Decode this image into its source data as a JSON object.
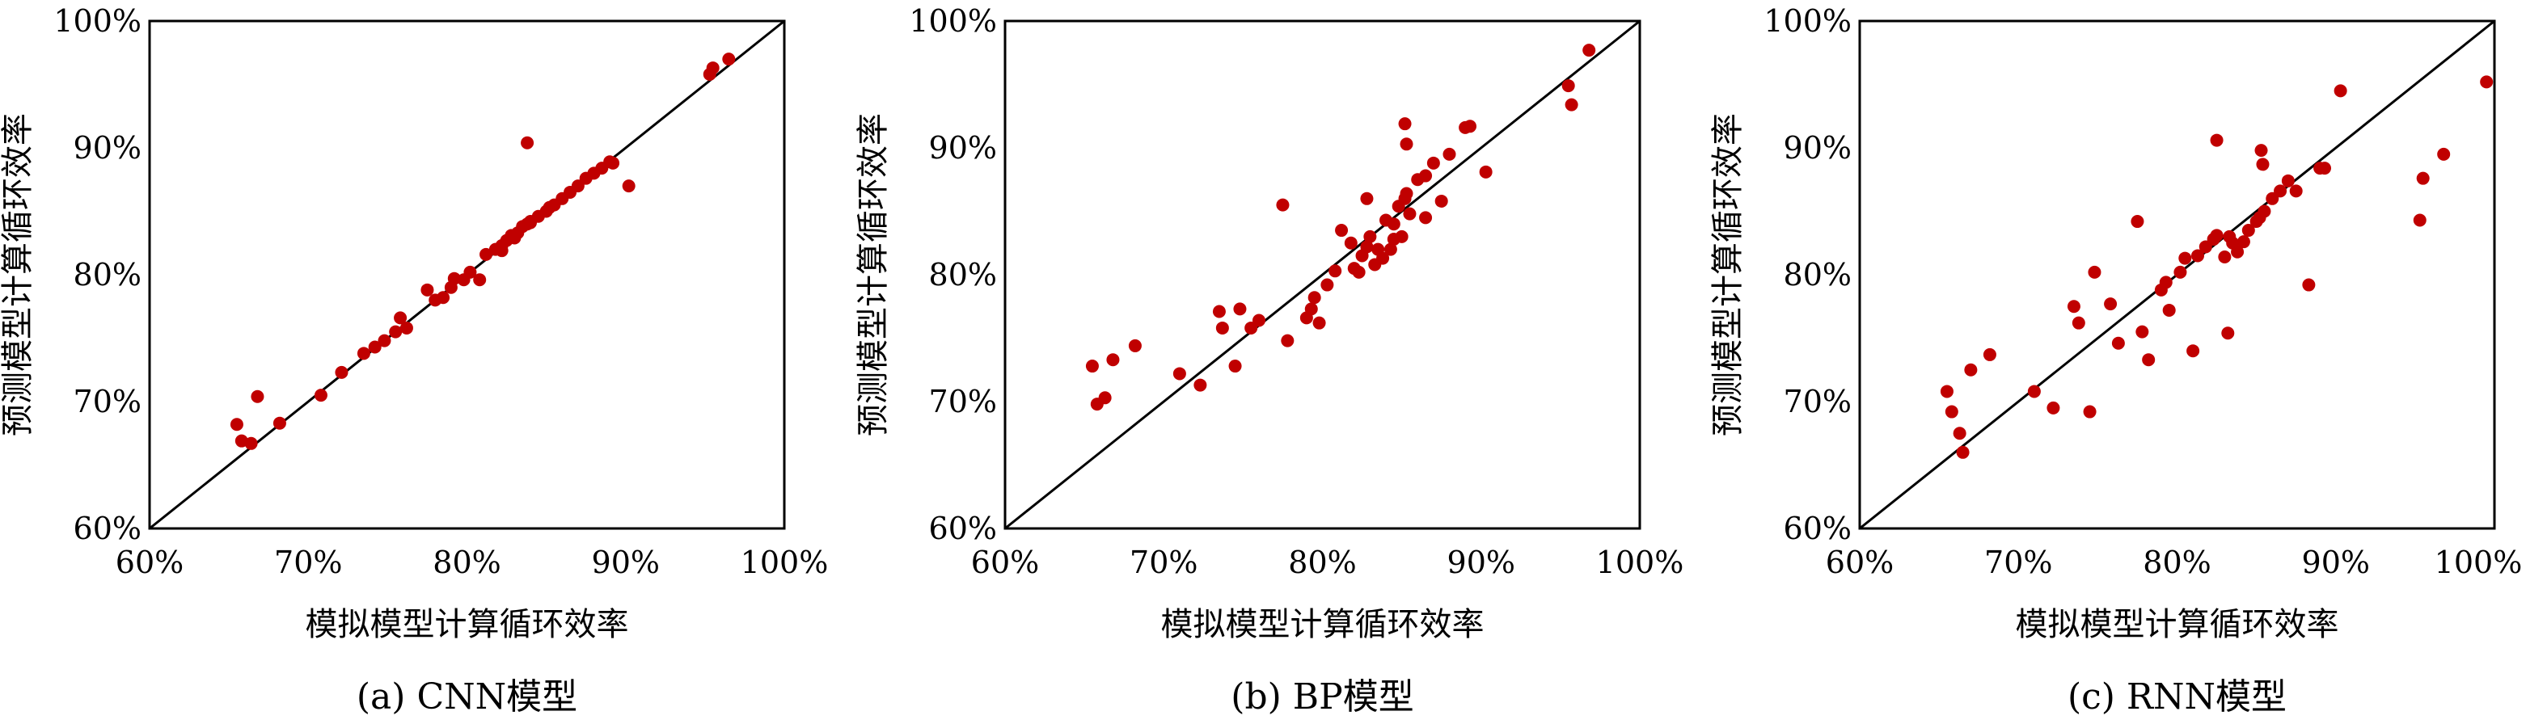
{
  "chart_data": [
    {
      "type": "scatter",
      "caption": "(a) CNN模型",
      "xlabel": "模拟模型计算循环效率",
      "ylabel": "预测模型计算循环效率",
      "xlim": [
        60,
        100
      ],
      "ylim": [
        60,
        100
      ],
      "ticks": [
        "60%",
        "70%",
        "80%",
        "90%",
        "100%"
      ],
      "tick_values": [
        60,
        70,
        80,
        90,
        100
      ],
      "reference_line": "y = x",
      "x": [
        65.5,
        65.8,
        66.4,
        66.8,
        68.2,
        70.8,
        72.1,
        73.5,
        74.2,
        74.8,
        75.5,
        75.8,
        76.2,
        77.5,
        78.0,
        78.5,
        79.0,
        79.2,
        79.8,
        80.2,
        80.8,
        81.2,
        81.8,
        82.2,
        82.5,
        82.8,
        83.0,
        83.2,
        83.5,
        83.8,
        84.0,
        84.5,
        85.0,
        85.5,
        86.0,
        86.5,
        87.0,
        87.5,
        88.0,
        88.5,
        89.0,
        89.2,
        90.2,
        95.3,
        95.5,
        96.5,
        83.8,
        82.2,
        84.0,
        85.2
      ],
      "y": [
        68.2,
        66.9,
        66.7,
        70.4,
        68.3,
        70.5,
        72.3,
        73.8,
        74.3,
        74.8,
        75.5,
        76.6,
        75.8,
        78.8,
        78.0,
        78.2,
        79.0,
        79.7,
        79.6,
        80.2,
        79.6,
        81.6,
        82.0,
        82.3,
        82.7,
        83.1,
        82.9,
        83.3,
        83.8,
        84.0,
        84.2,
        84.6,
        85.0,
        85.5,
        86.0,
        86.5,
        87.0,
        87.6,
        88.0,
        88.4,
        88.9,
        88.8,
        87.0,
        95.8,
        96.3,
        97.0,
        90.4,
        81.9,
        84.1,
        85.3
      ]
    },
    {
      "type": "scatter",
      "caption": "(b) BP模型",
      "xlabel": "模拟模型计算循环效率",
      "ylabel": "预测模型计算循环效率",
      "xlim": [
        60,
        100
      ],
      "ylim": [
        60,
        100
      ],
      "ticks": [
        "60%",
        "70%",
        "80%",
        "90%",
        "100%"
      ],
      "tick_values": [
        60,
        70,
        80,
        90,
        100
      ],
      "reference_line": "y = x",
      "x": [
        65.5,
        65.8,
        66.3,
        66.8,
        68.2,
        71.0,
        72.3,
        73.5,
        73.7,
        74.5,
        74.8,
        75.5,
        76.0,
        77.5,
        77.8,
        79.0,
        79.3,
        79.5,
        79.8,
        80.3,
        80.8,
        81.2,
        81.8,
        82.0,
        82.3,
        82.5,
        82.8,
        83.0,
        83.3,
        83.5,
        83.8,
        84.0,
        84.3,
        84.5,
        84.8,
        85.0,
        85.2,
        85.3,
        85.5,
        86.0,
        86.5,
        87.0,
        87.5,
        88.0,
        89.0,
        89.3,
        90.3,
        95.5,
        95.7,
        96.8,
        85.2,
        85.3,
        82.8,
        84.5,
        86.5
      ],
      "y": [
        72.8,
        69.8,
        70.3,
        73.3,
        74.4,
        72.2,
        71.3,
        77.1,
        75.8,
        72.8,
        77.3,
        75.8,
        76.4,
        85.5,
        74.8,
        76.6,
        77.3,
        78.2,
        76.2,
        79.2,
        80.3,
        83.5,
        82.5,
        80.5,
        80.2,
        81.5,
        82.2,
        83.0,
        80.8,
        82.0,
        81.3,
        84.3,
        82.0,
        84.0,
        85.4,
        83.0,
        86.0,
        86.4,
        84.8,
        87.5,
        87.8,
        88.8,
        85.8,
        89.5,
        91.6,
        91.7,
        88.1,
        94.9,
        93.4,
        97.7,
        91.9,
        90.3,
        86.0,
        82.8,
        84.5
      ]
    },
    {
      "type": "scatter",
      "caption": "(c) RNN模型",
      "xlabel": "模拟模型计算循环效率",
      "ylabel": "预测模型计算循环效率",
      "xlim": [
        60,
        100
      ],
      "ylim": [
        60,
        100
      ],
      "ticks": [
        "60%",
        "70%",
        "80%",
        "90%",
        "100%"
      ],
      "tick_values": [
        60,
        70,
        80,
        90,
        100
      ],
      "reference_line": "y = x",
      "x": [
        65.5,
        65.8,
        66.3,
        66.5,
        67.0,
        68.2,
        71.0,
        72.2,
        73.5,
        73.8,
        74.5,
        74.8,
        75.8,
        76.3,
        77.5,
        77.8,
        78.2,
        79.0,
        79.3,
        79.5,
        80.2,
        80.5,
        81.3,
        81.8,
        82.3,
        82.5,
        83.0,
        83.3,
        83.5,
        83.8,
        84.2,
        84.5,
        85.0,
        85.2,
        85.5,
        86.0,
        86.5,
        87.0,
        87.5,
        88.3,
        89.0,
        89.3,
        90.3,
        95.3,
        95.5,
        96.8,
        99.5,
        81.0,
        83.2,
        85.3,
        85.4,
        82.5
      ],
      "y": [
        70.8,
        69.2,
        67.5,
        66.0,
        72.5,
        73.7,
        70.8,
        69.5,
        77.5,
        76.2,
        69.2,
        80.2,
        77.7,
        74.6,
        84.2,
        75.5,
        73.3,
        78.8,
        79.4,
        77.2,
        80.2,
        81.3,
        81.5,
        82.2,
        82.8,
        90.6,
        81.4,
        83.0,
        82.5,
        81.8,
        82.6,
        83.5,
        84.2,
        84.5,
        85.0,
        86.0,
        86.6,
        87.4,
        86.6,
        79.2,
        88.4,
        88.4,
        94.5,
        84.3,
        87.6,
        89.5,
        95.2,
        74.0,
        75.4,
        89.8,
        88.7,
        83.1
      ]
    }
  ]
}
